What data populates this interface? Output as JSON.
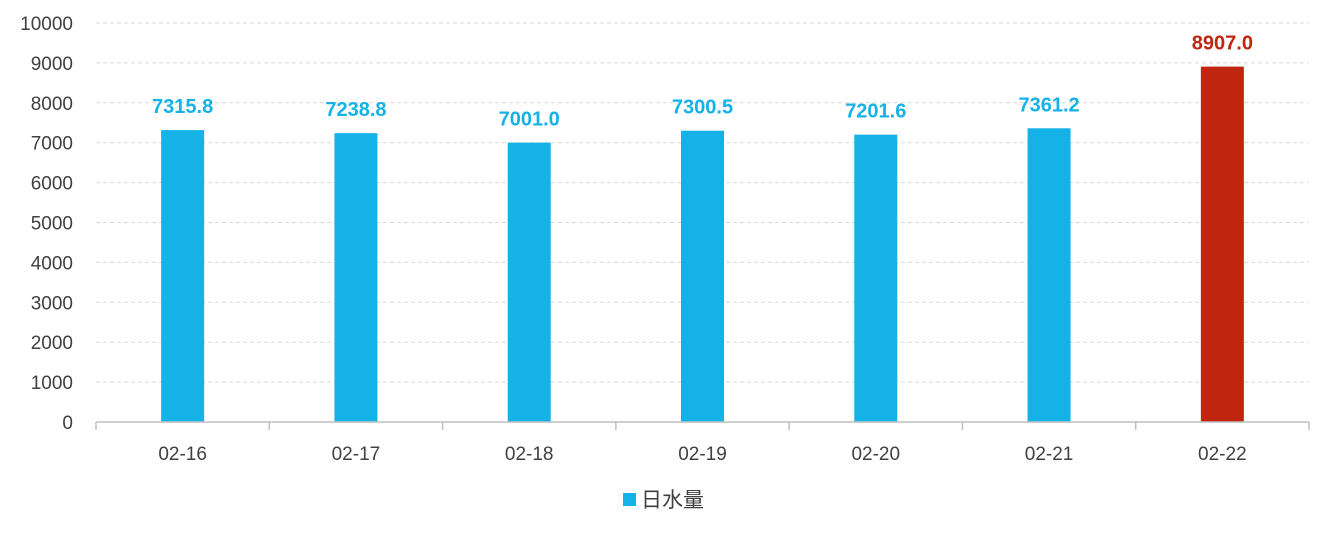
{
  "chart_data": {
    "type": "bar",
    "categories": [
      "02-16",
      "02-17",
      "02-18",
      "02-19",
      "02-20",
      "02-21",
      "02-22"
    ],
    "series": [
      {
        "name": "日水量",
        "values": [
          7315.8,
          7238.8,
          7001.0,
          7300.5,
          7201.6,
          7361.2,
          8907.0
        ],
        "data_labels": [
          "7315.8",
          "7238.8",
          "7001.0",
          "7300.5",
          "7201.6",
          "7361.2",
          "8907.0"
        ]
      }
    ],
    "ylim": [
      0,
      10000
    ],
    "yticks": [
      "0",
      "1000",
      "2000",
      "3000",
      "4000",
      "5000",
      "6000",
      "7000",
      "8000",
      "9000",
      "10000"
    ],
    "grid": true,
    "legend_position": "bottom",
    "colors": {
      "bar": "#15b2e8",
      "highlight_bar": "#c0250f",
      "label": "#15b2e8",
      "highlight_label": "#c0250f",
      "highlight_index": 6
    }
  }
}
